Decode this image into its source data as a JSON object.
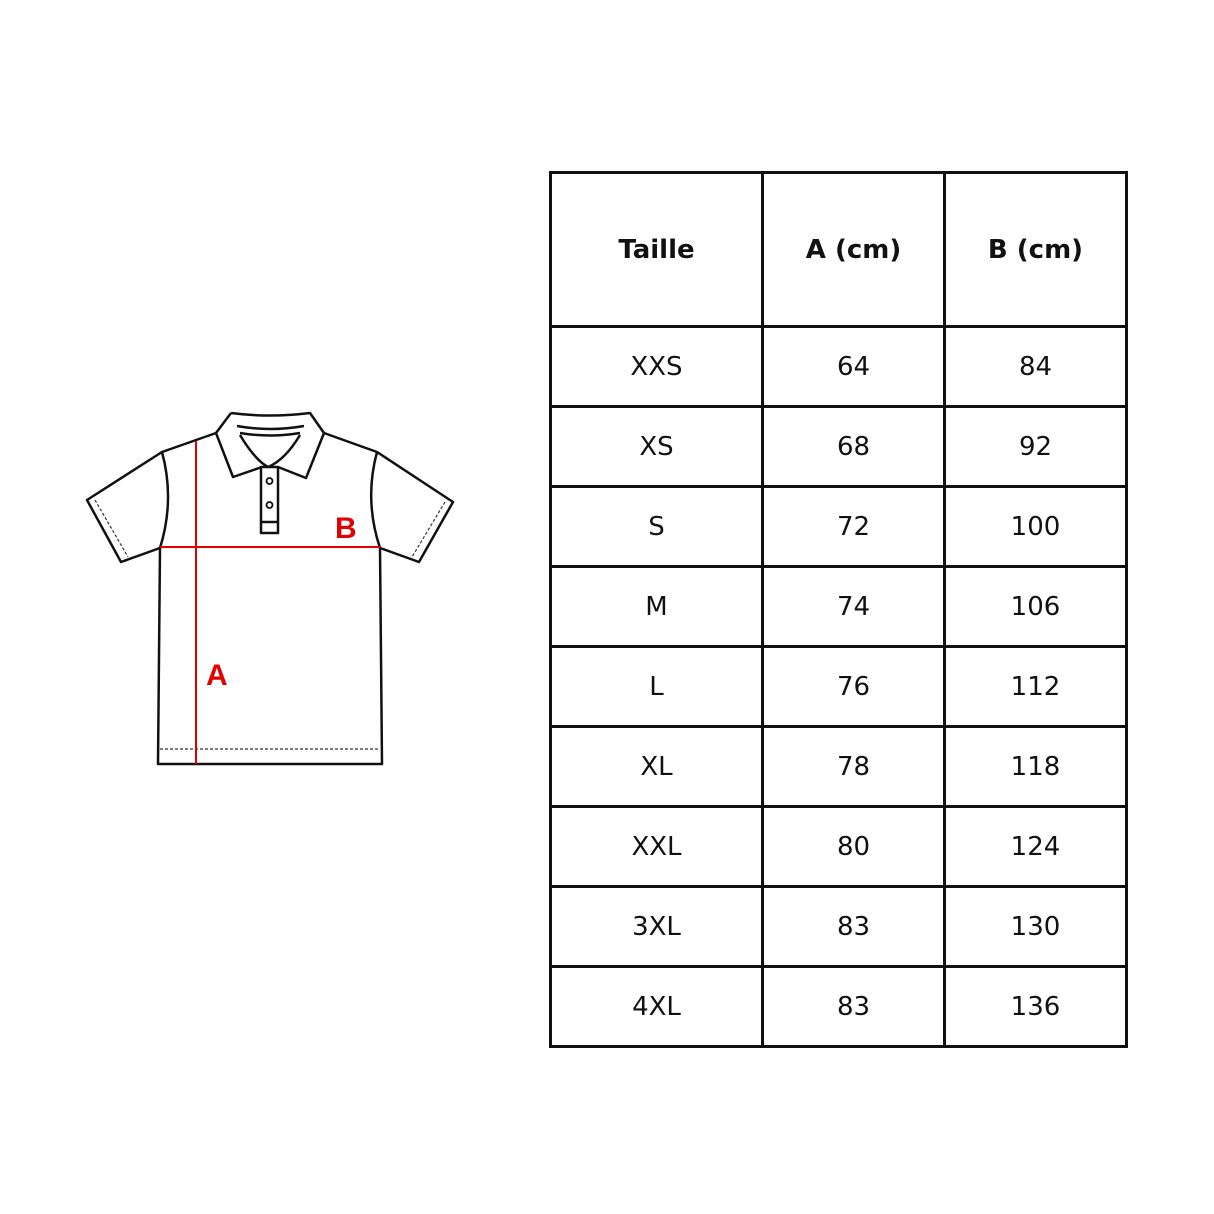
{
  "diagram": {
    "label_a": "A",
    "label_b": "B",
    "measure_color": "#e00000"
  },
  "table": {
    "headers": [
      "Taille",
      "A (cm)",
      "B (cm)"
    ],
    "rows": [
      [
        "XXS",
        "64",
        "84"
      ],
      [
        "XS",
        "68",
        "92"
      ],
      [
        "S",
        "72",
        "100"
      ],
      [
        "M",
        "74",
        "106"
      ],
      [
        "L",
        "76",
        "112"
      ],
      [
        "XL",
        "78",
        "118"
      ],
      [
        "XXL",
        "80",
        "124"
      ],
      [
        "3XL",
        "83",
        "130"
      ],
      [
        "4XL",
        "83",
        "136"
      ]
    ]
  }
}
